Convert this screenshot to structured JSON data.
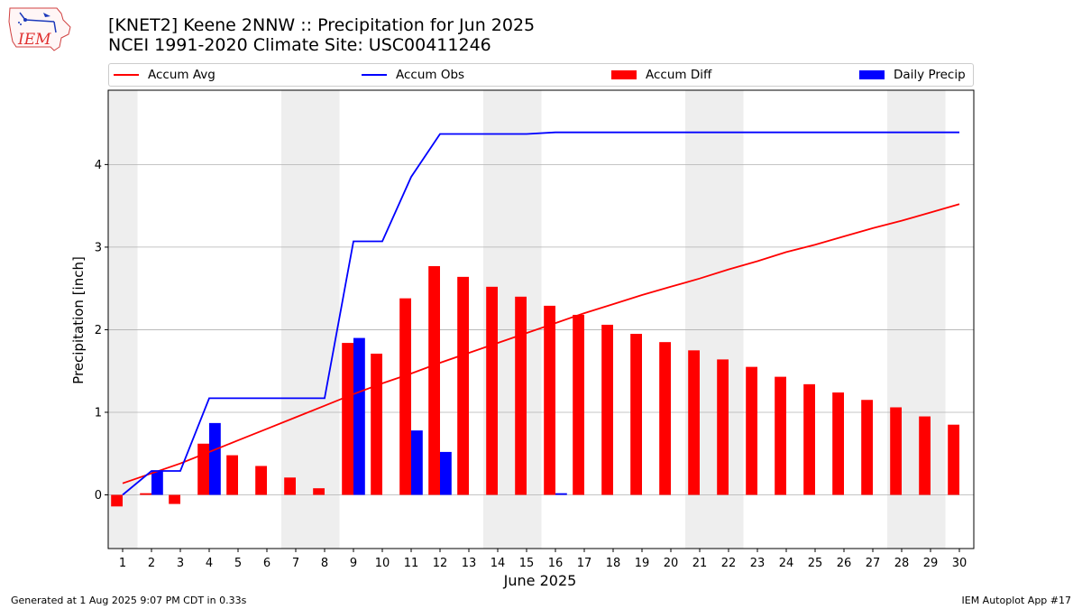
{
  "header": {
    "title_line1": "[KNET2] Keene 2NNW :: Precipitation for Jun 2025",
    "title_line2": "NCEI 1991-2020 Climate Site: USC00411246",
    "logo_text": "IEM"
  },
  "footer": {
    "generated": "Generated at 1 Aug 2025 9:07 PM CDT in 0.33s",
    "app": "IEM Autoplot App #17"
  },
  "colors": {
    "avg": "#ff0000",
    "obs": "#0000ff",
    "diff": "#ff0000",
    "daily": "#0000ff",
    "weekend_band": "#eeeeee",
    "grid": "#b0b0b0"
  },
  "chart_data": {
    "type": "bar",
    "xlabel": "June 2025",
    "ylabel": "Precipitation [inch]",
    "ylim": [
      -0.65,
      4.9
    ],
    "xlim": [
      0.5,
      30.5
    ],
    "yticks": [
      0,
      1,
      2,
      3,
      4
    ],
    "grid": "horizontal",
    "legend_placement": "top",
    "days": [
      1,
      2,
      3,
      4,
      5,
      6,
      7,
      8,
      9,
      10,
      11,
      12,
      13,
      14,
      15,
      16,
      17,
      18,
      19,
      20,
      21,
      22,
      23,
      24,
      25,
      26,
      27,
      28,
      29,
      30
    ],
    "weekend_days": [
      1,
      7,
      8,
      14,
      15,
      21,
      22,
      28,
      29
    ],
    "legend": [
      "Accum Avg",
      "Accum Obs",
      "Accum Diff",
      "Daily Precip"
    ],
    "series": [
      {
        "name": "Accum Avg",
        "kind": "line",
        "values": [
          0.14,
          0.26,
          0.38,
          0.52,
          0.66,
          0.8,
          0.94,
          1.08,
          1.22,
          1.35,
          1.47,
          1.6,
          1.72,
          1.84,
          1.96,
          2.08,
          2.2,
          2.31,
          2.42,
          2.52,
          2.62,
          2.73,
          2.83,
          2.94,
          3.03,
          3.13,
          3.23,
          3.32,
          3.42,
          3.52
        ]
      },
      {
        "name": "Accum Obs",
        "kind": "line",
        "values": [
          0.0,
          0.29,
          0.29,
          1.17,
          1.17,
          1.17,
          1.17,
          1.17,
          3.07,
          3.07,
          3.85,
          4.37,
          4.37,
          4.37,
          4.37,
          4.39,
          4.39,
          4.39,
          4.39,
          4.39,
          4.39,
          4.39,
          4.39,
          4.39,
          4.39,
          4.39,
          4.39,
          4.39,
          4.39,
          4.39
        ]
      },
      {
        "name": "Accum Diff",
        "kind": "bar",
        "values": [
          -0.14,
          0.02,
          -0.11,
          0.62,
          0.48,
          0.35,
          0.21,
          0.08,
          1.84,
          1.71,
          2.38,
          2.77,
          2.64,
          2.52,
          2.4,
          2.29,
          2.18,
          2.06,
          1.95,
          1.85,
          1.75,
          1.64,
          1.55,
          1.43,
          1.34,
          1.24,
          1.15,
          1.06,
          0.95,
          0.85
        ]
      },
      {
        "name": "Daily Precip",
        "kind": "bar",
        "values": [
          0.0,
          0.29,
          0.0,
          0.87,
          0.0,
          0.0,
          0.0,
          0.0,
          1.9,
          0.0,
          0.78,
          0.52,
          0.0,
          0.0,
          0.0,
          0.02,
          0.0,
          0.0,
          0.0,
          0.0,
          0.0,
          0.0,
          0.0,
          0.0,
          0.0,
          0.0,
          0.0,
          0.0,
          0.0,
          0.0
        ]
      }
    ]
  }
}
